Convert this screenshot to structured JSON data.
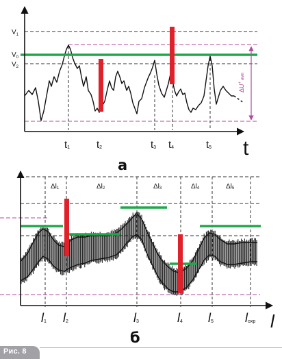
{
  "top": {
    "label": "а",
    "axis_t": "t",
    "levels": {
      "v1": "V",
      "v1_sub": "1",
      "v0": "V",
      "v0_sub": "0",
      "v2": "V",
      "v2_sub": "2"
    },
    "delta_u": "ΔU",
    "delta_u_sup": "+",
    "delta_u_sub": "имп",
    "times": [
      {
        "main": "t",
        "sub": "1"
      },
      {
        "main": "t",
        "sub": "2"
      },
      {
        "main": "t",
        "sub": "3"
      },
      {
        "main": "t",
        "sub": "4"
      },
      {
        "main": "t",
        "sub": "5"
      }
    ]
  },
  "bottom": {
    "label": "б",
    "axis_l": "l",
    "deltas": [
      {
        "main": "Δl",
        "sub": "1"
      },
      {
        "main": "Δl",
        "sub": "2"
      },
      {
        "main": "Δl",
        "sub": "3"
      },
      {
        "main": "Δl",
        "sub": "4"
      },
      {
        "main": "Δl",
        "sub": "5"
      }
    ],
    "positions": [
      {
        "main": "l",
        "sub": "1"
      },
      {
        "main": "l",
        "sub": "2"
      },
      {
        "main": "l",
        "sub": "3"
      },
      {
        "main": "l",
        "sub": "4"
      },
      {
        "main": "l",
        "sub": "5"
      },
      {
        "main": "l",
        "sub": "охр"
      }
    ]
  },
  "caption": "Рис. 8",
  "colors": {
    "green": "#1fa84a",
    "red": "#e0202a",
    "magenta": "#b04a9c",
    "ink": "#111111"
  }
}
